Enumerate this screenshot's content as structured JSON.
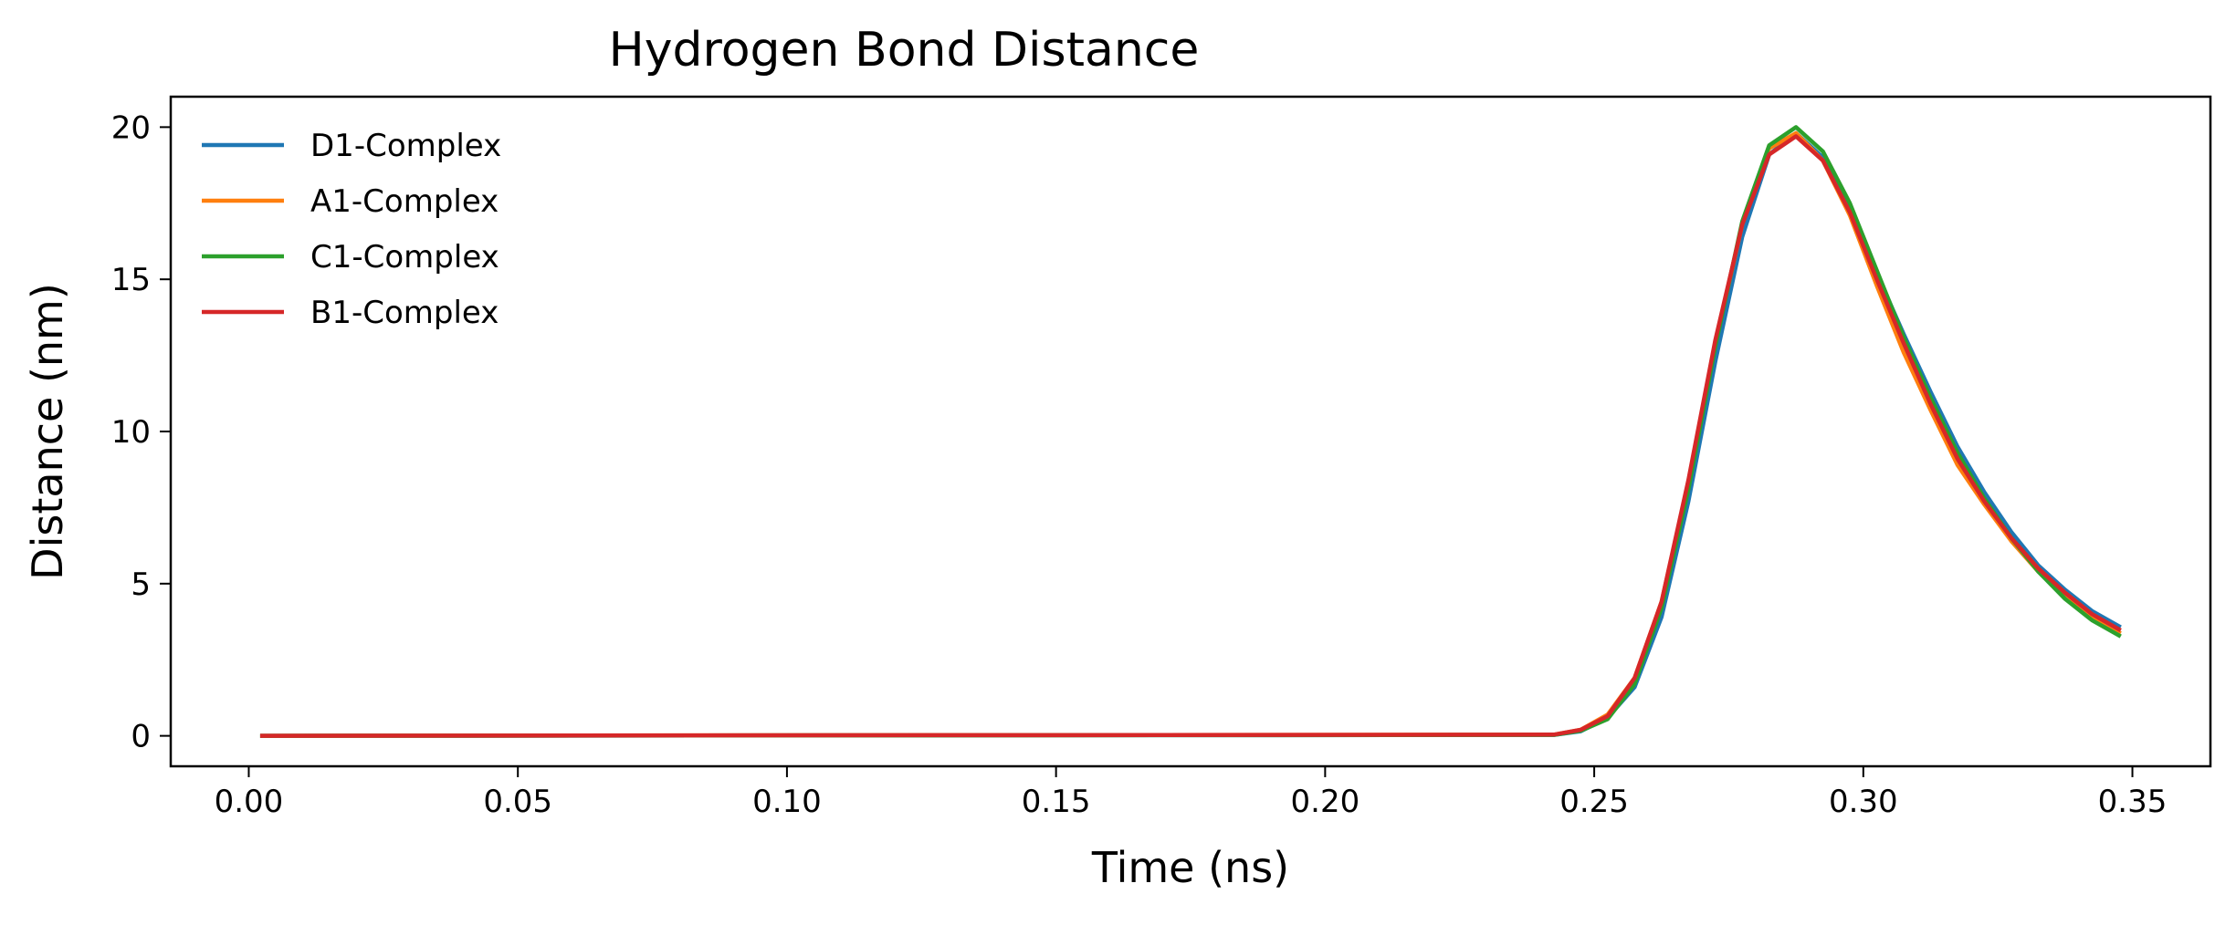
{
  "chart_data": {
    "type": "line",
    "title": "Hydrogen Bond Distance",
    "xlabel": "Time (ns)",
    "ylabel": "Distance (nm)",
    "xlim": [
      -0.0145,
      0.3645
    ],
    "ylim": [
      -1,
      21
    ],
    "xticks": [
      0.0,
      0.05,
      0.1,
      0.15,
      0.2,
      0.25,
      0.3,
      0.35
    ],
    "xtick_labels": [
      "0.00",
      "0.05",
      "0.10",
      "0.15",
      "0.20",
      "0.25",
      "0.30",
      "0.35"
    ],
    "yticks": [
      0,
      5,
      10,
      15,
      20
    ],
    "ytick_labels": [
      "0",
      "5",
      "10",
      "15",
      "20"
    ],
    "grid": false,
    "legend_position": "top-left",
    "x": [
      0.0025,
      0.2425,
      0.2475,
      0.2525,
      0.2575,
      0.2625,
      0.2675,
      0.2725,
      0.2775,
      0.2825,
      0.2875,
      0.2925,
      0.2975,
      0.3025,
      0.3075,
      0.3125,
      0.3175,
      0.3225,
      0.3275,
      0.3325,
      0.3375,
      0.3425,
      0.3475
    ],
    "series": [
      {
        "name": "D1-Complex",
        "color": "#1f77b4",
        "values": [
          0.0,
          0.03,
          0.15,
          0.6,
          1.6,
          3.9,
          7.7,
          12.3,
          16.4,
          19.1,
          19.8,
          19.0,
          17.4,
          15.2,
          13.2,
          11.3,
          9.5,
          8.0,
          6.7,
          5.6,
          4.8,
          4.1,
          3.6
        ]
      },
      {
        "name": "A1-Complex",
        "color": "#ff7f0e",
        "values": [
          0.0,
          0.04,
          0.2,
          0.7,
          1.9,
          4.4,
          8.3,
          12.9,
          16.8,
          19.3,
          19.8,
          18.9,
          17.1,
          14.8,
          12.6,
          10.7,
          8.9,
          7.6,
          6.4,
          5.4,
          4.6,
          3.9,
          3.4
        ]
      },
      {
        "name": "C1-Complex",
        "color": "#2ca02c",
        "values": [
          0.0,
          0.03,
          0.17,
          0.55,
          1.7,
          4.2,
          8.1,
          12.8,
          16.9,
          19.4,
          20.0,
          19.2,
          17.5,
          15.3,
          13.1,
          11.1,
          9.3,
          7.8,
          6.5,
          5.4,
          4.5,
          3.8,
          3.3
        ]
      },
      {
        "name": "B1-Complex",
        "color": "#d62728",
        "values": [
          0.0,
          0.04,
          0.2,
          0.65,
          1.9,
          4.4,
          8.4,
          13.0,
          16.8,
          19.1,
          19.7,
          18.9,
          17.2,
          15.0,
          12.9,
          10.9,
          9.1,
          7.7,
          6.5,
          5.5,
          4.7,
          4.0,
          3.5
        ]
      }
    ]
  }
}
